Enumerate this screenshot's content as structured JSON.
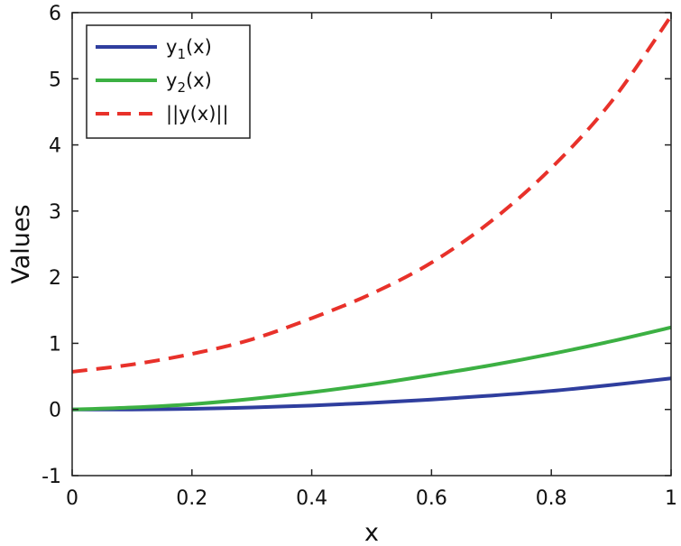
{
  "chart_data": {
    "type": "line",
    "title": "",
    "xlabel": "x",
    "ylabel": "Values",
    "xlim": [
      0,
      1
    ],
    "ylim": [
      -1,
      6
    ],
    "xticks": [
      0,
      0.2,
      0.4,
      0.6,
      0.8,
      1
    ],
    "xtick_labels": [
      "0",
      "0.2",
      "0.4",
      "0.6",
      "0.8",
      "1"
    ],
    "yticks": [
      -1,
      0,
      1,
      2,
      3,
      4,
      5,
      6
    ],
    "ytick_labels": [
      "-1",
      "0",
      "1",
      "2",
      "3",
      "4",
      "5",
      "6"
    ],
    "grid": false,
    "legend_position": "top-left",
    "x": [
      0,
      0.1,
      0.2,
      0.3,
      0.4,
      0.5,
      0.6,
      0.7,
      0.8,
      0.9,
      1.0
    ],
    "series": [
      {
        "name": "y1(x)",
        "legend_main": "y",
        "legend_sub": "1",
        "legend_tail": "(x)",
        "color": "#2f3e9e",
        "style": "solid",
        "values": [
          0.0,
          0.0,
          0.01,
          0.03,
          0.06,
          0.1,
          0.15,
          0.21,
          0.28,
          0.37,
          0.47
        ]
      },
      {
        "name": "y2(x)",
        "legend_main": "y",
        "legend_sub": "2",
        "legend_tail": "(x)",
        "color": "#3cb043",
        "style": "solid",
        "values": [
          0.0,
          0.03,
          0.08,
          0.16,
          0.26,
          0.38,
          0.52,
          0.67,
          0.84,
          1.03,
          1.24
        ]
      },
      {
        "name": "||y(x)||",
        "legend_main": "||y(x)||",
        "legend_sub": "",
        "legend_tail": "",
        "color": "#e8312a",
        "style": "dashed",
        "values": [
          0.57,
          0.68,
          0.84,
          1.06,
          1.38,
          1.75,
          2.22,
          2.85,
          3.65,
          4.65,
          5.95
        ]
      }
    ]
  }
}
